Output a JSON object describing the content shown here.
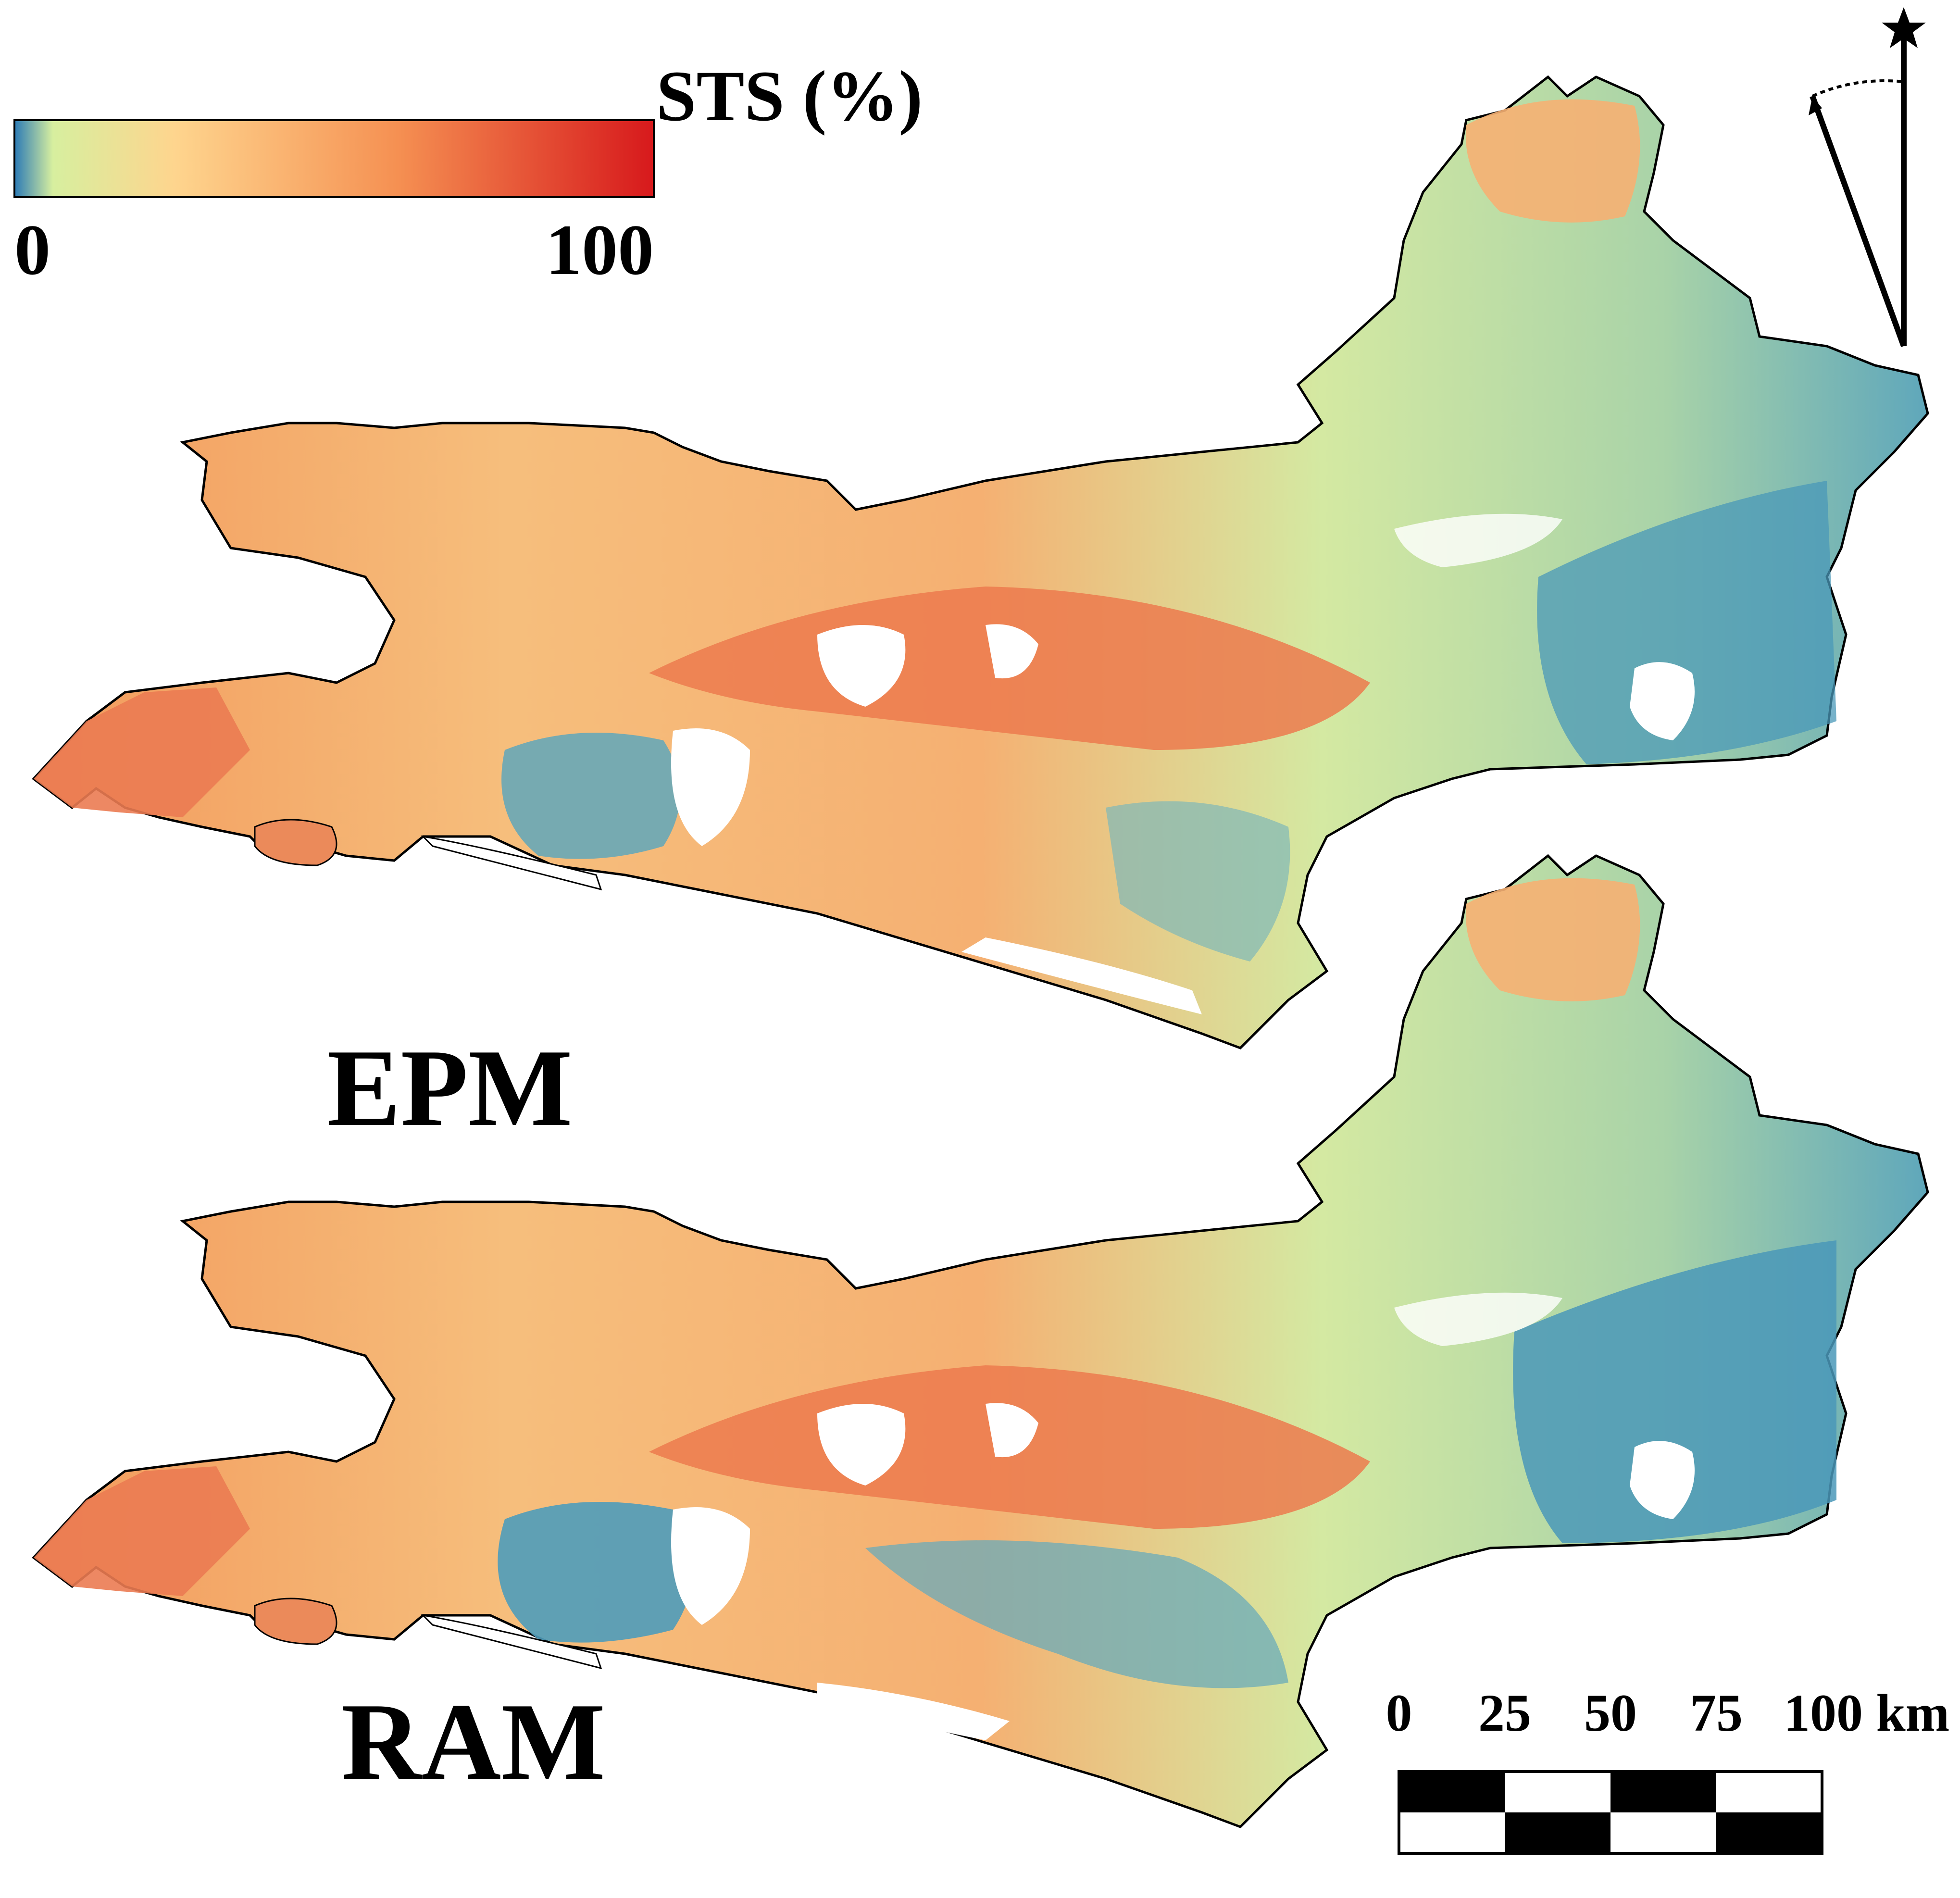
{
  "legend": {
    "title": "STS (%)",
    "min_label": "0",
    "max_label": "100",
    "gradient": [
      "#2c7bb6",
      "#d7ef9f",
      "#fed58e",
      "#f59052",
      "#d7191c"
    ]
  },
  "panels": [
    {
      "label": "EPM"
    },
    {
      "label": "RAM"
    }
  ],
  "scale_bar": {
    "labels": [
      "0",
      "25",
      "50",
      "75",
      "100 km"
    ]
  },
  "colors": {
    "low": "#4a98b8",
    "light_green": "#cfe8a0",
    "mid": "#f6c27a",
    "orange": "#f29a5c",
    "high": "#e2614a",
    "outline": "#000000"
  }
}
